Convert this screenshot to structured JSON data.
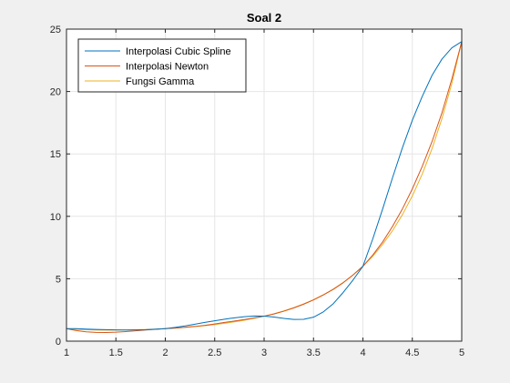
{
  "chart_data": {
    "type": "line",
    "title": "Soal 2",
    "xlabel": "",
    "ylabel": "",
    "xlim": [
      1,
      5
    ],
    "ylim": [
      0,
      25
    ],
    "xticks": [
      1,
      1.5,
      2,
      2.5,
      3,
      3.5,
      4,
      4.5,
      5
    ],
    "xtick_labels": [
      "1",
      "1.5",
      "2",
      "2.5",
      "3",
      "3.5",
      "4",
      "4.5",
      "5"
    ],
    "yticks": [
      0,
      5,
      10,
      15,
      20,
      25
    ],
    "ytick_labels": [
      "0",
      "5",
      "10",
      "15",
      "20",
      "25"
    ],
    "grid": true,
    "legend_position": "top-left",
    "series": [
      {
        "name": "Interpolasi Cubic Spline",
        "color": "#0072BD",
        "points": [
          [
            1.0,
            1.0
          ],
          [
            1.1,
            1.0
          ],
          [
            1.2,
            0.97
          ],
          [
            1.3,
            0.94
          ],
          [
            1.4,
            0.92
          ],
          [
            1.5,
            0.9
          ],
          [
            1.6,
            0.89
          ],
          [
            1.7,
            0.9
          ],
          [
            1.8,
            0.92
          ],
          [
            1.9,
            0.96
          ],
          [
            2.0,
            1.0
          ],
          [
            2.1,
            1.1
          ],
          [
            2.2,
            1.22
          ],
          [
            2.3,
            1.36
          ],
          [
            2.4,
            1.5
          ],
          [
            2.5,
            1.63
          ],
          [
            2.6,
            1.76
          ],
          [
            2.7,
            1.87
          ],
          [
            2.8,
            1.96
          ],
          [
            2.9,
            2.01
          ],
          [
            3.0,
            2.0
          ],
          [
            3.1,
            1.93
          ],
          [
            3.2,
            1.82
          ],
          [
            3.3,
            1.74
          ],
          [
            3.4,
            1.75
          ],
          [
            3.5,
            1.92
          ],
          [
            3.6,
            2.35
          ],
          [
            3.7,
            3.0
          ],
          [
            3.8,
            3.9
          ],
          [
            3.9,
            4.9
          ],
          [
            4.0,
            6.0
          ],
          [
            4.1,
            8.2
          ],
          [
            4.2,
            10.6
          ],
          [
            4.3,
            13.1
          ],
          [
            4.4,
            15.5
          ],
          [
            4.5,
            17.7
          ],
          [
            4.6,
            19.6
          ],
          [
            4.7,
            21.3
          ],
          [
            4.8,
            22.6
          ],
          [
            4.9,
            23.5
          ],
          [
            5.0,
            24.0
          ]
        ]
      },
      {
        "name": "Interpolasi Newton",
        "color": "#D95319",
        "points": [
          [
            1.0,
            1.0
          ],
          [
            1.1,
            0.85
          ],
          [
            1.2,
            0.75
          ],
          [
            1.3,
            0.7
          ],
          [
            1.4,
            0.69
          ],
          [
            1.5,
            0.72
          ],
          [
            1.6,
            0.77
          ],
          [
            1.7,
            0.83
          ],
          [
            1.8,
            0.89
          ],
          [
            1.9,
            0.95
          ],
          [
            2.0,
            1.0
          ],
          [
            2.1,
            1.05
          ],
          [
            2.2,
            1.11
          ],
          [
            2.3,
            1.18
          ],
          [
            2.4,
            1.27
          ],
          [
            2.5,
            1.38
          ],
          [
            2.6,
            1.5
          ],
          [
            2.7,
            1.61
          ],
          [
            2.8,
            1.73
          ],
          [
            2.9,
            1.86
          ],
          [
            3.0,
            2.0
          ],
          [
            3.1,
            2.18
          ],
          [
            3.2,
            2.4
          ],
          [
            3.3,
            2.66
          ],
          [
            3.4,
            2.96
          ],
          [
            3.5,
            3.3
          ],
          [
            3.6,
            3.7
          ],
          [
            3.7,
            4.15
          ],
          [
            3.8,
            4.68
          ],
          [
            3.9,
            5.3
          ],
          [
            4.0,
            6.0
          ],
          [
            4.1,
            6.9
          ],
          [
            4.2,
            7.95
          ],
          [
            4.3,
            9.2
          ],
          [
            4.4,
            10.6
          ],
          [
            4.5,
            12.2
          ],
          [
            4.6,
            14.0
          ],
          [
            4.7,
            16.0
          ],
          [
            4.8,
            18.3
          ],
          [
            4.9,
            21.0
          ],
          [
            5.0,
            24.0
          ]
        ]
      },
      {
        "name": "Fungsi Gamma",
        "color": "#EDB120",
        "points": [
          [
            1.0,
            1.0
          ],
          [
            1.1,
            0.951
          ],
          [
            1.2,
            0.918
          ],
          [
            1.3,
            0.897
          ],
          [
            1.4,
            0.887
          ],
          [
            1.5,
            0.886
          ],
          [
            1.6,
            0.894
          ],
          [
            1.7,
            0.909
          ],
          [
            1.8,
            0.931
          ],
          [
            1.9,
            0.962
          ],
          [
            2.0,
            1.0
          ],
          [
            2.1,
            1.047
          ],
          [
            2.2,
            1.102
          ],
          [
            2.3,
            1.167
          ],
          [
            2.4,
            1.242
          ],
          [
            2.5,
            1.329
          ],
          [
            2.6,
            1.43
          ],
          [
            2.7,
            1.545
          ],
          [
            2.8,
            1.676
          ],
          [
            2.9,
            1.827
          ],
          [
            3.0,
            2.0
          ],
          [
            3.1,
            2.198
          ],
          [
            3.2,
            2.424
          ],
          [
            3.3,
            2.683
          ],
          [
            3.4,
            2.981
          ],
          [
            3.5,
            3.323
          ],
          [
            3.6,
            3.717
          ],
          [
            3.7,
            4.171
          ],
          [
            3.8,
            4.694
          ],
          [
            3.9,
            5.299
          ],
          [
            4.0,
            6.0
          ],
          [
            4.1,
            6.813
          ],
          [
            4.2,
            7.757
          ],
          [
            4.3,
            8.855
          ],
          [
            4.4,
            10.136
          ],
          [
            4.5,
            11.632
          ],
          [
            4.6,
            13.381
          ],
          [
            4.7,
            15.431
          ],
          [
            4.8,
            17.837
          ],
          [
            4.9,
            20.667
          ],
          [
            5.0,
            24.0
          ]
        ]
      }
    ]
  }
}
